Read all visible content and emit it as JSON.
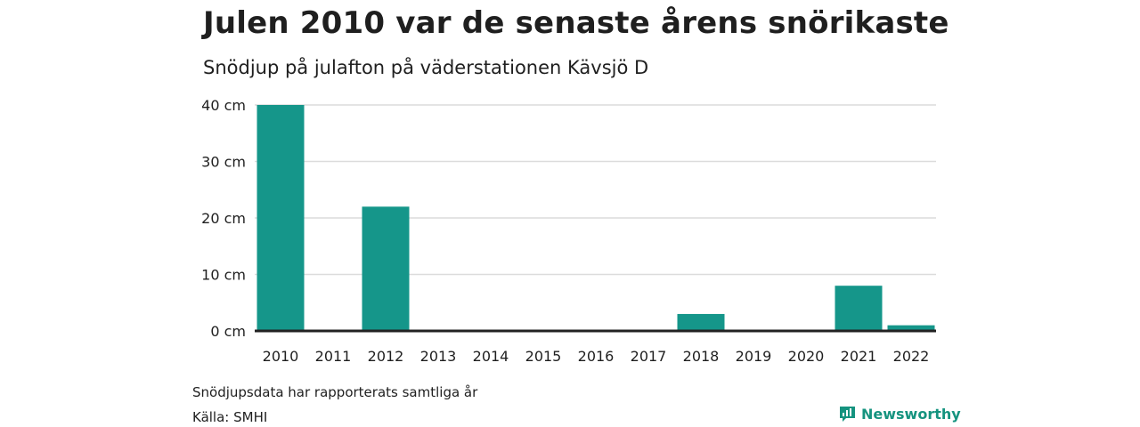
{
  "title": "Julen 2010 var de senaste årens snörikaste",
  "subtitle": "Snödjup på julafton på väderstationen Kävsjö D",
  "note": "Snödjupsdata har rapporterats samtliga år",
  "source": "Källa: SMHI",
  "brand": {
    "name": "Newsworthy",
    "icon": "bar-chart-speech-bubble-icon",
    "color": "#15937f"
  },
  "chart_data": {
    "type": "bar",
    "categories": [
      "2010",
      "2011",
      "2012",
      "2013",
      "2014",
      "2015",
      "2016",
      "2017",
      "2018",
      "2019",
      "2020",
      "2021",
      "2022"
    ],
    "values": [
      40,
      0,
      22,
      0,
      0,
      0,
      0,
      0,
      3,
      0,
      0,
      8,
      1
    ],
    "ylim": [
      0,
      40
    ],
    "yticks": [
      0,
      10,
      20,
      30,
      40
    ],
    "ytick_labels": [
      "0 cm",
      "10 cm",
      "20 cm",
      "30 cm",
      "40 cm"
    ],
    "xlabel": "",
    "ylabel": "",
    "bar_color": "#15968a",
    "grid": true,
    "legend": "none"
  }
}
